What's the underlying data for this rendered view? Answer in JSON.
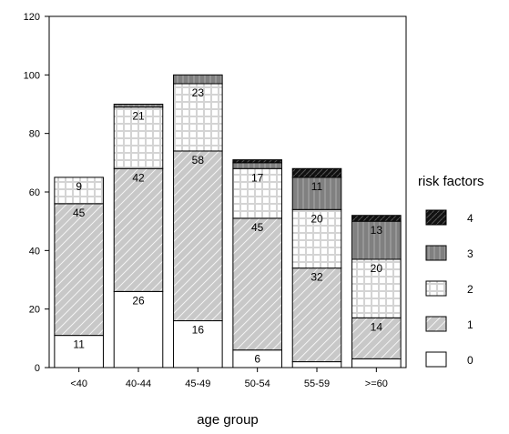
{
  "chart_data": {
    "type": "bar",
    "stacked": true,
    "xlabel": "age group",
    "ylabel": "",
    "ylim": [
      0,
      120
    ],
    "yticks": [
      0,
      20,
      40,
      60,
      80,
      100,
      120
    ],
    "categories": [
      "<40",
      "40-44",
      "45-49",
      "50-54",
      "55-59",
      ">=60"
    ],
    "legend_title": "risk factors",
    "legend_position": "right",
    "grid": false,
    "series": [
      {
        "name": "0",
        "values": [
          11,
          26,
          16,
          6,
          2,
          3
        ],
        "labels": [
          "11",
          "26",
          "16",
          "6",
          "",
          ""
        ],
        "pattern": "none"
      },
      {
        "name": "1",
        "values": [
          45,
          42,
          58,
          45,
          32,
          14
        ],
        "labels": [
          "45",
          "42",
          "58",
          "45",
          "32",
          "14"
        ],
        "pattern": "diagonal"
      },
      {
        "name": "2",
        "values": [
          9,
          21,
          23,
          17,
          20,
          20
        ],
        "labels": [
          "9",
          "21",
          "23",
          "17",
          "20",
          "20"
        ],
        "pattern": "grid"
      },
      {
        "name": "3",
        "values": [
          0,
          1,
          3,
          2,
          11,
          13
        ],
        "labels": [
          "",
          "",
          "",
          "",
          "11",
          "13"
        ],
        "pattern": "dark-stripes"
      },
      {
        "name": "4",
        "values": [
          0,
          0,
          0,
          1,
          3,
          2
        ],
        "labels": [
          "",
          "",
          "",
          "",
          "",
          ""
        ],
        "pattern": "solid-black"
      }
    ]
  }
}
